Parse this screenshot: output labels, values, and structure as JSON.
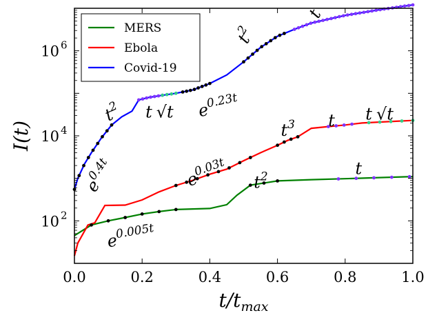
{
  "chart_data": {
    "type": "line",
    "title": "",
    "xlabel": "t/t_max",
    "ylabel": "I(t)",
    "xlim": [
      0,
      1
    ],
    "ylim": [
      10,
      10000000
    ],
    "yscale": "log",
    "grid": false,
    "legend_position": "top-left",
    "x_ticks": [
      "0.0",
      "0.2",
      "0.4",
      "0.6",
      "0.8",
      "1.0"
    ],
    "y_ticks": [
      {
        "base": "10",
        "exp": "2"
      },
      {
        "base": "10",
        "exp": "4"
      },
      {
        "base": "10",
        "exp": "6"
      }
    ],
    "series": [
      {
        "name": "MERS",
        "color": "#008000",
        "points": [
          [
            0.0,
            45
          ],
          [
            0.05,
            80
          ],
          [
            0.1,
            100
          ],
          [
            0.15,
            120
          ],
          [
            0.2,
            145
          ],
          [
            0.25,
            165
          ],
          [
            0.3,
            185
          ],
          [
            0.35,
            190
          ],
          [
            0.4,
            195
          ],
          [
            0.45,
            240
          ],
          [
            0.48,
            400
          ],
          [
            0.52,
            690
          ],
          [
            0.6,
            870
          ],
          [
            0.7,
            930
          ],
          [
            0.8,
            980
          ],
          [
            0.9,
            1040
          ],
          [
            1.0,
            1100
          ]
        ]
      },
      {
        "name": "Ebola",
        "color": "#ff0000",
        "points": [
          [
            0.0,
            15
          ],
          [
            0.01,
            30
          ],
          [
            0.04,
            80
          ],
          [
            0.06,
            90
          ],
          [
            0.09,
            230
          ],
          [
            0.15,
            235
          ],
          [
            0.2,
            310
          ],
          [
            0.25,
            480
          ],
          [
            0.3,
            680
          ],
          [
            0.35,
            900
          ],
          [
            0.4,
            1250
          ],
          [
            0.45,
            1650
          ],
          [
            0.5,
            2600
          ],
          [
            0.55,
            4000
          ],
          [
            0.6,
            6000
          ],
          [
            0.63,
            7800
          ],
          [
            0.66,
            9500
          ],
          [
            0.7,
            15000
          ],
          [
            0.75,
            16500
          ],
          [
            0.8,
            18000
          ],
          [
            0.85,
            20000
          ],
          [
            0.9,
            21000
          ],
          [
            0.95,
            22000
          ],
          [
            1.0,
            23000
          ]
        ]
      },
      {
        "name": "Covid-19",
        "color": "#0000ff",
        "points": [
          [
            0.0,
            550
          ],
          [
            0.01,
            1000
          ],
          [
            0.03,
            2200
          ],
          [
            0.05,
            4000
          ],
          [
            0.08,
            9000
          ],
          [
            0.11,
            18000
          ],
          [
            0.14,
            28000
          ],
          [
            0.17,
            38000
          ],
          [
            0.19,
            70000
          ],
          [
            0.22,
            80000
          ],
          [
            0.26,
            90000
          ],
          [
            0.3,
            100000
          ],
          [
            0.35,
            120000
          ],
          [
            0.4,
            170000
          ],
          [
            0.45,
            270000
          ],
          [
            0.5,
            550000
          ],
          [
            0.55,
            1200000
          ],
          [
            0.6,
            2200000
          ],
          [
            0.65,
            3200000
          ],
          [
            0.7,
            4500000
          ],
          [
            0.8,
            6800000
          ],
          [
            0.9,
            9200000
          ],
          [
            1.0,
            12000000
          ]
        ]
      }
    ],
    "annotations": [
      {
        "text": "t",
        "sup": "2",
        "x": 0.1,
        "y": 22000,
        "rotate": -25
      },
      {
        "text": "e",
        "sup": "0.4t",
        "x": 0.06,
        "y": 450,
        "rotate": -55
      },
      {
        "text": "t",
        "sup": "",
        "sqrt": "t",
        "x": 0.21,
        "y": 27000,
        "rotate": 0
      },
      {
        "text": "e",
        "sup": "0.23t",
        "x": 0.37,
        "y": 28000,
        "rotate": -12
      },
      {
        "text": "t",
        "sup": "2",
        "x": 0.51,
        "y": 1400000,
        "rotate": -60
      },
      {
        "text": "t",
        "sup": "",
        "x": 0.72,
        "y": 5500000,
        "rotate": -60
      },
      {
        "text": "e",
        "sup": "0.03t",
        "x": 0.34,
        "y": 650,
        "rotate": -20
      },
      {
        "text": "t",
        "sup": "3",
        "x": 0.61,
        "y": 10000,
        "rotate": 0
      },
      {
        "text": "t",
        "sup": "",
        "x": 0.75,
        "y": 17000,
        "rotate": 0
      },
      {
        "text": "t",
        "sup": "",
        "sqrt": "t",
        "x": 0.86,
        "y": 24000,
        "rotate": 0
      },
      {
        "text": "t",
        "sup": "2",
        "x": 0.53,
        "y": 600,
        "rotate": 0
      },
      {
        "text": "t",
        "sup": "",
        "x": 0.83,
        "y": 1250,
        "rotate": 0
      },
      {
        "text": "e",
        "sup": "0.005t",
        "x": 0.1,
        "y": 24,
        "rotate": -10
      }
    ],
    "markers": [
      {
        "series": "Covid-19",
        "color": "#000000",
        "x_from": 0.0,
        "x_to": 0.11,
        "n": 9
      },
      {
        "series": "Covid-19",
        "color": "#7f33ff",
        "x_from": 0.19,
        "x_to": 0.26,
        "n": 7
      },
      {
        "series": "Covid-19",
        "color": "#33cc88",
        "x_from": 0.26,
        "x_to": 0.3,
        "n": 4
      },
      {
        "series": "Covid-19",
        "color": "#000000",
        "x_from": 0.32,
        "x_to": 0.4,
        "n": 8
      },
      {
        "series": "Covid-19",
        "color": "#000000",
        "x_from": 0.5,
        "x_to": 0.62,
        "n": 10
      },
      {
        "series": "Covid-19",
        "color": "#7f33ff",
        "x_from": 0.65,
        "x_to": 1.0,
        "n": 30
      },
      {
        "series": "Ebola",
        "color": "#000000",
        "x_from": 0.3,
        "x_to": 0.52,
        "n": 8
      },
      {
        "series": "Ebola",
        "color": "#000000",
        "x_from": 0.6,
        "x_to": 0.66,
        "n": 4
      },
      {
        "series": "Ebola",
        "color": "#7f33ff",
        "x_from": 0.75,
        "x_to": 0.82,
        "n": 4
      },
      {
        "series": "Ebola",
        "color": "#33cc88",
        "x_from": 0.87,
        "x_to": 1.0,
        "n": 5
      },
      {
        "series": "MERS",
        "color": "#000000",
        "x_from": 0.05,
        "x_to": 0.3,
        "n": 6
      },
      {
        "series": "MERS",
        "color": "#000000",
        "x_from": 0.52,
        "x_to": 0.6,
        "n": 3
      },
      {
        "series": "MERS",
        "color": "#7f33ff",
        "x_from": 0.78,
        "x_to": 0.99,
        "n": 5
      }
    ]
  }
}
